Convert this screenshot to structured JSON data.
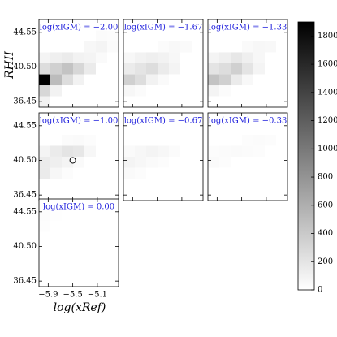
{
  "chart_data": {
    "type": "heatmap",
    "x_label": "log(xRef)",
    "y_label": "RHII",
    "xlim": [
      -6.05,
      -4.755
    ],
    "ylim": [
      35.8,
      46.05
    ],
    "xticks": [
      {
        "value": -5.9,
        "label": "−5.9"
      },
      {
        "value": -5.5,
        "label": "−5.5"
      },
      {
        "value": -5.1,
        "label": "−5.1"
      }
    ],
    "yticks": [
      36.45,
      {
        "value": 40.5,
        "label": "40.50"
      },
      44.55
    ],
    "xbins": [
      -6.05,
      -5.865,
      -5.68,
      -5.495,
      -5.31,
      -5.125,
      -4.94,
      -4.755
    ],
    "ybins": [
      35.8,
      37.08,
      38.36,
      39.64,
      40.93,
      42.21,
      43.49,
      44.77,
      46.05
    ],
    "clim": [
      0,
      1900
    ],
    "cticks": [
      0,
      200,
      400,
      600,
      800,
      1000,
      1200,
      1400,
      1600,
      1800
    ],
    "cmap": [
      "#ffffff",
      "#000000"
    ],
    "title_color": "#2222dd",
    "panels": [
      {
        "title": "log(xIGM) = −2.00",
        "z": [
          [
            100,
            0,
            0,
            0,
            0,
            0,
            0
          ],
          [
            300,
            100,
            0,
            0,
            0,
            0,
            0
          ],
          [
            1900,
            500,
            250,
            100,
            0,
            0,
            0
          ],
          [
            250,
            350,
            450,
            300,
            150,
            0,
            0
          ],
          [
            80,
            120,
            150,
            100,
            80,
            40,
            0
          ],
          [
            0,
            0,
            0,
            0,
            60,
            80,
            30
          ],
          [
            0,
            0,
            0,
            0,
            0,
            30,
            20
          ],
          [
            0,
            0,
            0,
            0,
            0,
            0,
            0
          ]
        ]
      },
      {
        "title": "log(xIGM) = −1.67",
        "z": [
          [
            0,
            0,
            0,
            0,
            0,
            0,
            0
          ],
          [
            60,
            30,
            0,
            0,
            0,
            0,
            0
          ],
          [
            350,
            250,
            100,
            40,
            0,
            0,
            0
          ],
          [
            150,
            200,
            250,
            150,
            80,
            0,
            0
          ],
          [
            60,
            100,
            120,
            100,
            60,
            0,
            0
          ],
          [
            0,
            0,
            0,
            30,
            50,
            40,
            0
          ],
          [
            0,
            0,
            0,
            0,
            0,
            0,
            0
          ],
          [
            0,
            0,
            0,
            0,
            0,
            0,
            0
          ]
        ]
      },
      {
        "title": "log(xIGM) = −1.33",
        "z": [
          [
            0,
            0,
            0,
            0,
            0,
            0,
            0
          ],
          [
            80,
            30,
            0,
            0,
            0,
            0,
            0
          ],
          [
            450,
            350,
            150,
            50,
            0,
            0,
            0
          ],
          [
            200,
            250,
            350,
            200,
            80,
            0,
            0
          ],
          [
            80,
            120,
            180,
            120,
            60,
            0,
            0
          ],
          [
            0,
            0,
            0,
            40,
            60,
            50,
            0
          ],
          [
            0,
            0,
            0,
            0,
            0,
            0,
            0
          ],
          [
            0,
            0,
            0,
            0,
            0,
            0,
            0
          ]
        ]
      },
      {
        "title": "log(xIGM) = −1.00",
        "marker": [
          -5.5,
          40.5
        ],
        "z": [
          [
            0,
            0,
            0,
            0,
            0,
            0,
            0
          ],
          [
            0,
            0,
            0,
            0,
            0,
            0,
            0
          ],
          [
            150,
            60,
            20,
            0,
            0,
            0,
            0
          ],
          [
            150,
            120,
            80,
            40,
            0,
            0,
            0
          ],
          [
            80,
            150,
            200,
            180,
            60,
            0,
            0
          ],
          [
            0,
            0,
            30,
            40,
            20,
            0,
            0
          ],
          [
            0,
            0,
            0,
            0,
            0,
            0,
            0
          ],
          [
            0,
            0,
            0,
            0,
            0,
            0,
            0
          ]
        ]
      },
      {
        "title": "log(xIGM) = −0.67",
        "z": [
          [
            0,
            0,
            0,
            0,
            0,
            0,
            0
          ],
          [
            0,
            0,
            0,
            0,
            0,
            0,
            0
          ],
          [
            40,
            20,
            0,
            0,
            0,
            0,
            0
          ],
          [
            80,
            60,
            40,
            20,
            0,
            0,
            0
          ],
          [
            40,
            60,
            80,
            60,
            30,
            0,
            0
          ],
          [
            0,
            0,
            0,
            0,
            0,
            0,
            0
          ],
          [
            0,
            0,
            0,
            0,
            0,
            0,
            0
          ],
          [
            0,
            0,
            0,
            0,
            0,
            0,
            0
          ]
        ]
      },
      {
        "title": "log(xIGM) = −0.33",
        "z": [
          [
            0,
            0,
            0,
            0,
            0,
            0,
            0
          ],
          [
            0,
            0,
            0,
            0,
            0,
            0,
            0
          ],
          [
            0,
            0,
            0,
            0,
            0,
            0,
            0
          ],
          [
            40,
            20,
            0,
            0,
            0,
            0,
            0
          ],
          [
            20,
            30,
            40,
            30,
            20,
            0,
            0
          ],
          [
            0,
            0,
            0,
            20,
            30,
            20,
            0
          ],
          [
            0,
            0,
            0,
            0,
            0,
            0,
            0
          ],
          [
            0,
            0,
            0,
            0,
            0,
            0,
            0
          ]
        ]
      },
      {
        "title": "log(xIGM) = 0.00",
        "z": [
          [
            0,
            0,
            0,
            0,
            0,
            0,
            0
          ],
          [
            0,
            0,
            0,
            0,
            0,
            0,
            0
          ],
          [
            0,
            0,
            0,
            0,
            0,
            0,
            0
          ],
          [
            0,
            0,
            0,
            0,
            0,
            0,
            0
          ],
          [
            0,
            0,
            0,
            0,
            0,
            0,
            0
          ],
          [
            15,
            0,
            0,
            0,
            0,
            0,
            0
          ],
          [
            20,
            10,
            0,
            0,
            0,
            0,
            0
          ],
          [
            0,
            0,
            0,
            0,
            0,
            0,
            0
          ]
        ]
      }
    ]
  }
}
